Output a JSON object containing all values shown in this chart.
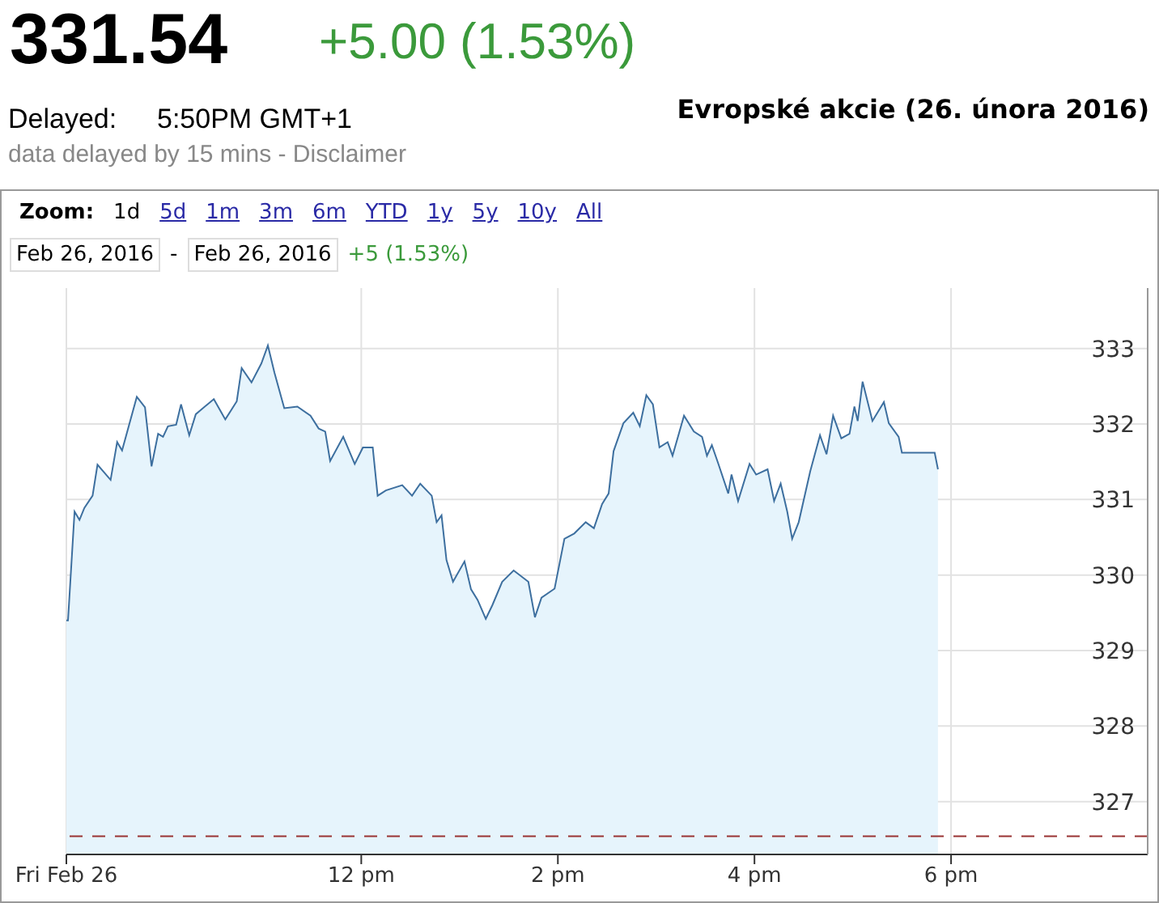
{
  "chart_data": {
    "type": "area",
    "title": "Evropské akcie (26. února 2016)",
    "subtitle": "data delayed by 15 mins - Disclaimer",
    "annotations": [
      "331.54",
      "+5.00 (1.53%)",
      "Delayed:",
      "5:50PM GMT+1",
      "Zoom:",
      "1d",
      "5d",
      "1m",
      "3m",
      "6m",
      "YTD",
      "1y",
      "5y",
      "10y",
      "All",
      "Feb 26, 2016",
      "-",
      "Feb 26, 2016",
      "+5 (1.53%)"
    ],
    "x": [
      "2016-02-26T09:00",
      "2016-02-26T09:01",
      "2016-02-26T09:05",
      "2016-02-26T09:08",
      "2016-02-26T09:11",
      "2016-02-26T09:16",
      "2016-02-26T09:19",
      "2016-02-26T09:27",
      "2016-02-26T09:31",
      "2016-02-26T09:34",
      "2016-02-26T09:43",
      "2016-02-26T09:48",
      "2016-02-26T09:52",
      "2016-02-26T09:56",
      "2016-02-26T09:59",
      "2016-02-26T10:02",
      "2016-02-26T10:07",
      "2016-02-26T10:10",
      "2016-02-26T10:15",
      "2016-02-26T10:19",
      "2016-02-26T10:30",
      "2016-02-26T10:37",
      "2016-02-26T10:44",
      "2016-02-26T10:47",
      "2016-02-26T10:53",
      "2016-02-26T10:59",
      "2016-02-26T11:03",
      "2016-02-26T11:07",
      "2016-02-26T11:13",
      "2016-02-26T11:21",
      "2016-02-26T11:29",
      "2016-02-26T11:34",
      "2016-02-26T11:38",
      "2016-02-26T11:41",
      "2016-02-26T11:49",
      "2016-02-26T11:56",
      "2016-02-26T12:01",
      "2016-02-26T12:07",
      "2016-02-26T12:10",
      "2016-02-26T12:15",
      "2016-02-26T12:25",
      "2016-02-26T12:31",
      "2016-02-26T12:36",
      "2016-02-26T12:43",
      "2016-02-26T12:46",
      "2016-02-26T12:49",
      "2016-02-26T12:52",
      "2016-02-26T12:56",
      "2016-02-26T13:03",
      "2016-02-26T13:07",
      "2016-02-26T13:11",
      "2016-02-26T13:16",
      "2016-02-26T13:20",
      "2016-02-26T13:26",
      "2016-02-26T13:33",
      "2016-02-26T13:42",
      "2016-02-26T13:46",
      "2016-02-26T13:50",
      "2016-02-26T13:58",
      "2016-02-26T14:04",
      "2016-02-26T14:10",
      "2016-02-26T14:17",
      "2016-02-26T14:22",
      "2016-02-26T14:27",
      "2016-02-26T14:31",
      "2016-02-26T14:34",
      "2016-02-26T14:40",
      "2016-02-26T14:46",
      "2016-02-26T14:50",
      "2016-02-26T14:54",
      "2016-02-26T14:58",
      "2016-02-26T15:02",
      "2016-02-26T15:07",
      "2016-02-26T15:10",
      "2016-02-26T15:17",
      "2016-02-26T15:23",
      "2016-02-26T15:28",
      "2016-02-26T15:31",
      "2016-02-26T15:34",
      "2016-02-26T15:38",
      "2016-02-26T15:44",
      "2016-02-26T15:46",
      "2016-02-26T15:50",
      "2016-02-26T15:57",
      "2016-02-26T16:01",
      "2016-02-26T16:08",
      "2016-02-26T16:12",
      "2016-02-26T16:16",
      "2016-02-26T16:20",
      "2016-02-26T16:23",
      "2016-02-26T16:27",
      "2016-02-26T16:34",
      "2016-02-26T16:40",
      "2016-02-26T16:44",
      "2016-02-26T16:48",
      "2016-02-26T16:53",
      "2016-02-26T16:58",
      "2016-02-26T17:01",
      "2016-02-26T17:03",
      "2016-02-26T17:06",
      "2016-02-26T17:12",
      "2016-02-26T17:19",
      "2016-02-26T17:22",
      "2016-02-26T17:28",
      "2016-02-26T17:30",
      "2016-02-26T17:50",
      "2016-02-26T17:52"
    ],
    "series": [
      {
        "color": "#3d6f9f",
        "values": [
          329.4,
          329.4,
          330.84,
          330.73,
          330.89,
          331.05,
          331.46,
          331.26,
          331.76,
          331.65,
          332.36,
          332.22,
          331.44,
          331.87,
          331.83,
          331.97,
          331.99,
          332.26,
          331.85,
          332.13,
          332.33,
          332.06,
          332.3,
          332.74,
          332.55,
          332.8,
          333.04,
          332.68,
          332.21,
          332.23,
          332.11,
          331.94,
          331.9,
          331.51,
          331.83,
          331.47,
          331.69,
          331.69,
          331.05,
          331.12,
          331.19,
          331.05,
          331.21,
          331.05,
          330.7,
          330.79,
          330.2,
          329.91,
          330.18,
          329.81,
          329.67,
          329.42,
          329.6,
          329.91,
          330.06,
          329.91,
          329.44,
          329.7,
          329.82,
          330.48,
          330.55,
          330.7,
          330.62,
          330.94,
          331.08,
          331.64,
          332.01,
          332.15,
          331.97,
          332.38,
          332.26,
          331.69,
          331.76,
          331.58,
          332.11,
          331.9,
          331.83,
          331.58,
          331.72,
          331.47,
          331.08,
          331.33,
          330.98,
          331.47,
          331.33,
          331.4,
          330.98,
          331.21,
          330.84,
          330.48,
          330.7,
          331.37,
          331.85,
          331.6,
          332.11,
          331.81,
          331.87,
          332.23,
          332.04,
          332.56,
          332.04,
          332.29,
          332.01,
          331.83,
          331.62,
          331.62,
          331.4
        ]
      }
    ],
    "xlim": [
      "2016-02-26T09:00",
      "2016-02-26T20:00"
    ],
    "xticks": [
      {
        "value": "2016-02-26T09:00",
        "label": "Fri Feb 26"
      },
      {
        "value": "2016-02-26T12:00",
        "label": "12 pm"
      },
      {
        "value": "2016-02-26T14:00",
        "label": "2 pm"
      },
      {
        "value": "2016-02-26T16:00",
        "label": "4 pm"
      },
      {
        "value": "2016-02-26T18:00",
        "label": "6 pm"
      }
    ],
    "ylim": [
      326.3,
      333.8
    ],
    "yticks": [
      327,
      328,
      329,
      330,
      331,
      332,
      333
    ],
    "ref_lines": [
      {
        "axis": "y",
        "value": 326.54,
        "color": "#993333",
        "line_style": "dashed"
      }
    ],
    "grid": true
  }
}
